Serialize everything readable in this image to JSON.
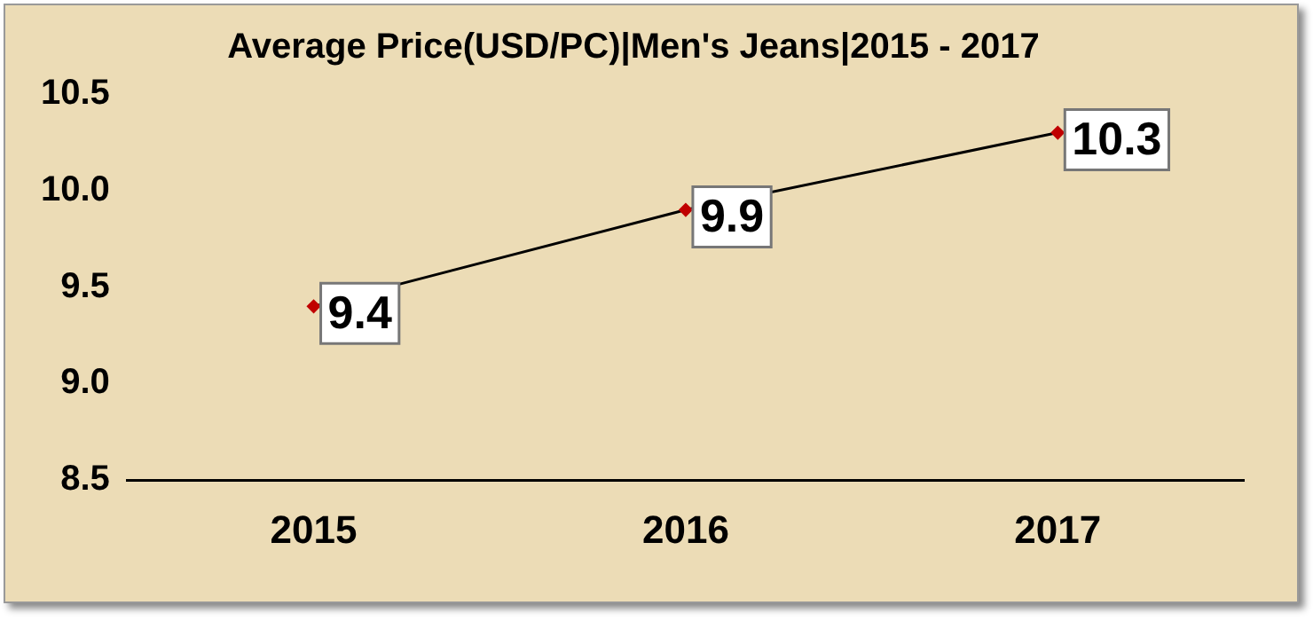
{
  "chart_data": {
    "type": "line",
    "title": "Average Price(USD/PC)|Men's Jeans|2015 - 2017",
    "categories": [
      "2015",
      "2016",
      "2017"
    ],
    "series": [
      {
        "color": "#000000",
        "values": [
          9.4,
          9.9,
          10.3
        ]
      }
    ],
    "ylim": [
      8.5,
      10.5
    ],
    "yticks": [
      {
        "value": 8.5,
        "label": "8.5"
      },
      {
        "value": 9,
        "label": "9.0"
      },
      {
        "value": 9.5,
        "label": "9.5"
      },
      {
        "value": 10,
        "label": "10.0"
      },
      {
        "value": 10.5,
        "label": "10.5"
      }
    ],
    "grid": false,
    "legend": false,
    "marker": "diamond",
    "line_style": "solid",
    "data_labels": true
  }
}
